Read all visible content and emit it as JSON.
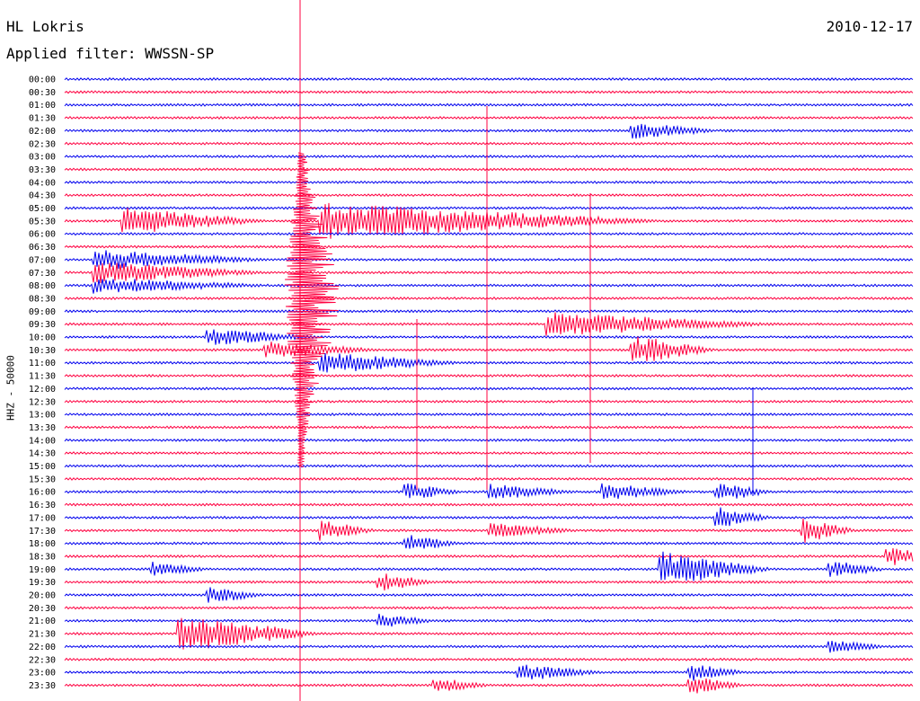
{
  "header": {
    "station": "HL Lokris",
    "filter": "Applied filter: WWSSN-SP",
    "date": "2010-12-17"
  },
  "chart_data": {
    "type": "line",
    "title": "HL Lokris",
    "subtitle": "Applied filter: WWSSN-SP",
    "date": "2010-12-17",
    "ylabel": "HHZ - 50000",
    "row_labels": [
      "00:00",
      "00:30",
      "01:00",
      "01:30",
      "02:00",
      "02:30",
      "03:00",
      "03:30",
      "04:00",
      "04:30",
      "05:00",
      "05:30",
      "06:00",
      "06:30",
      "07:00",
      "07:30",
      "08:00",
      "08:30",
      "09:00",
      "09:30",
      "10:00",
      "10:30",
      "11:00",
      "11:30",
      "12:00",
      "12:30",
      "13:00",
      "13:30",
      "14:00",
      "14:30",
      "15:00",
      "15:30",
      "16:00",
      "16:30",
      "17:00",
      "17:30",
      "18:00",
      "18:30",
      "19:00",
      "19:30",
      "20:00",
      "20:30",
      "21:00",
      "21:30",
      "22:00",
      "22:30",
      "23:00",
      "23:30"
    ],
    "row_minutes": 30,
    "series_colors": [
      "#0000ee",
      "#ff0040"
    ],
    "events": [
      {
        "row": 11,
        "minute": 2,
        "amp": 1.6,
        "dur": 5
      },
      {
        "row": 14,
        "minute": 1,
        "amp": 1.2,
        "dur": 6
      },
      {
        "row": 15,
        "minute": 1,
        "amp": 1.3,
        "dur": 6
      },
      {
        "row": 20,
        "minute": 5,
        "amp": 1.0,
        "dur": 4
      },
      {
        "row": 21,
        "minute": 7,
        "amp": 1.0,
        "dur": 4
      },
      {
        "row": 22,
        "minute": 9,
        "amp": 1.2,
        "dur": 5
      },
      {
        "row": 21,
        "minute": 20,
        "amp": 1.8,
        "dur": 3
      },
      {
        "row": 19,
        "minute": 17,
        "amp": 1.4,
        "dur": 8
      },
      {
        "row": 11,
        "minute": 9,
        "amp": 2.2,
        "dur": 12
      },
      {
        "row": 16,
        "minute": 1,
        "amp": 0.9,
        "dur": 6
      },
      {
        "row": 4,
        "minute": 20,
        "amp": 1.0,
        "dur": 3
      },
      {
        "row": 32,
        "minute": 12,
        "amp": 1.0,
        "dur": 2
      },
      {
        "row": 32,
        "minute": 15,
        "amp": 0.9,
        "dur": 3
      },
      {
        "row": 32,
        "minute": 19,
        "amp": 1.0,
        "dur": 3
      },
      {
        "row": 32,
        "minute": 23,
        "amp": 1.2,
        "dur": 2
      },
      {
        "row": 34,
        "minute": 23,
        "amp": 1.3,
        "dur": 2
      },
      {
        "row": 35,
        "minute": 9,
        "amp": 1.2,
        "dur": 2
      },
      {
        "row": 35,
        "minute": 15,
        "amp": 0.9,
        "dur": 3
      },
      {
        "row": 35,
        "minute": 26,
        "amp": 1.6,
        "dur": 2
      },
      {
        "row": 36,
        "minute": 12,
        "amp": 1.1,
        "dur": 2
      },
      {
        "row": 37,
        "minute": 29,
        "amp": 1.2,
        "dur": 2
      },
      {
        "row": 38,
        "minute": 3,
        "amp": 0.9,
        "dur": 2
      },
      {
        "row": 38,
        "minute": 21,
        "amp": 2.2,
        "dur": 4
      },
      {
        "row": 38,
        "minute": 27,
        "amp": 1.0,
        "dur": 2
      },
      {
        "row": 39,
        "minute": 11,
        "amp": 1.2,
        "dur": 2
      },
      {
        "row": 40,
        "minute": 5,
        "amp": 1.0,
        "dur": 2
      },
      {
        "row": 42,
        "minute": 11,
        "amp": 0.9,
        "dur": 2
      },
      {
        "row": 43,
        "minute": 4,
        "amp": 2.4,
        "dur": 5
      },
      {
        "row": 44,
        "minute": 27,
        "amp": 1.0,
        "dur": 2
      },
      {
        "row": 46,
        "minute": 16,
        "amp": 1.0,
        "dur": 3
      },
      {
        "row": 46,
        "minute": 22,
        "amp": 1.1,
        "dur": 2
      },
      {
        "row": 47,
        "minute": 13,
        "amp": 0.9,
        "dur": 2
      },
      {
        "row": 47,
        "minute": 22,
        "amp": 1.2,
        "dur": 2
      }
    ]
  }
}
